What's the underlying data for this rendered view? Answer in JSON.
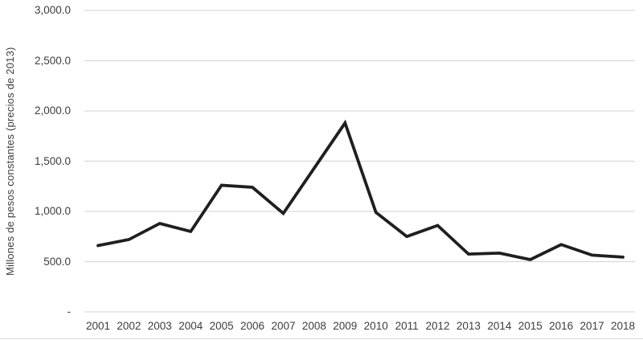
{
  "chart_data": {
    "type": "line",
    "title": "",
    "xlabel": "",
    "ylabel": "Millones de pesos constantes (precios de 2013)",
    "categories": [
      "2001",
      "2002",
      "2003",
      "2004",
      "2005",
      "2006",
      "2007",
      "2008",
      "2009",
      "2010",
      "2011",
      "2012",
      "2013",
      "2014",
      "2015",
      "2016",
      "2017",
      "2018"
    ],
    "series": [
      {
        "name": "Millones de pesos constantes",
        "values": [
          660,
          720,
          880,
          800,
          1260,
          1240,
          980,
          1430,
          1880,
          990,
          750,
          860,
          575,
          585,
          520,
          670,
          565,
          545
        ]
      }
    ],
    "ylim": [
      0,
      3000
    ],
    "y_ticks": [
      {
        "value": 3000,
        "label": "3,000.0"
      },
      {
        "value": 2500,
        "label": "2,500.0"
      },
      {
        "value": 2000,
        "label": "2,000.0"
      },
      {
        "value": 1500,
        "label": "1,500.0"
      },
      {
        "value": 1000,
        "label": "1,000.0"
      },
      {
        "value": 500,
        "label": "500.0"
      },
      {
        "value": 0,
        "label": "-"
      }
    ],
    "grid": "horizontal-only",
    "legend": "none",
    "colors": {
      "line": "#1f1f1f",
      "gridline": "#d9d9d9",
      "tick_text": "#3d3d3d",
      "background": "#ffffff"
    }
  }
}
